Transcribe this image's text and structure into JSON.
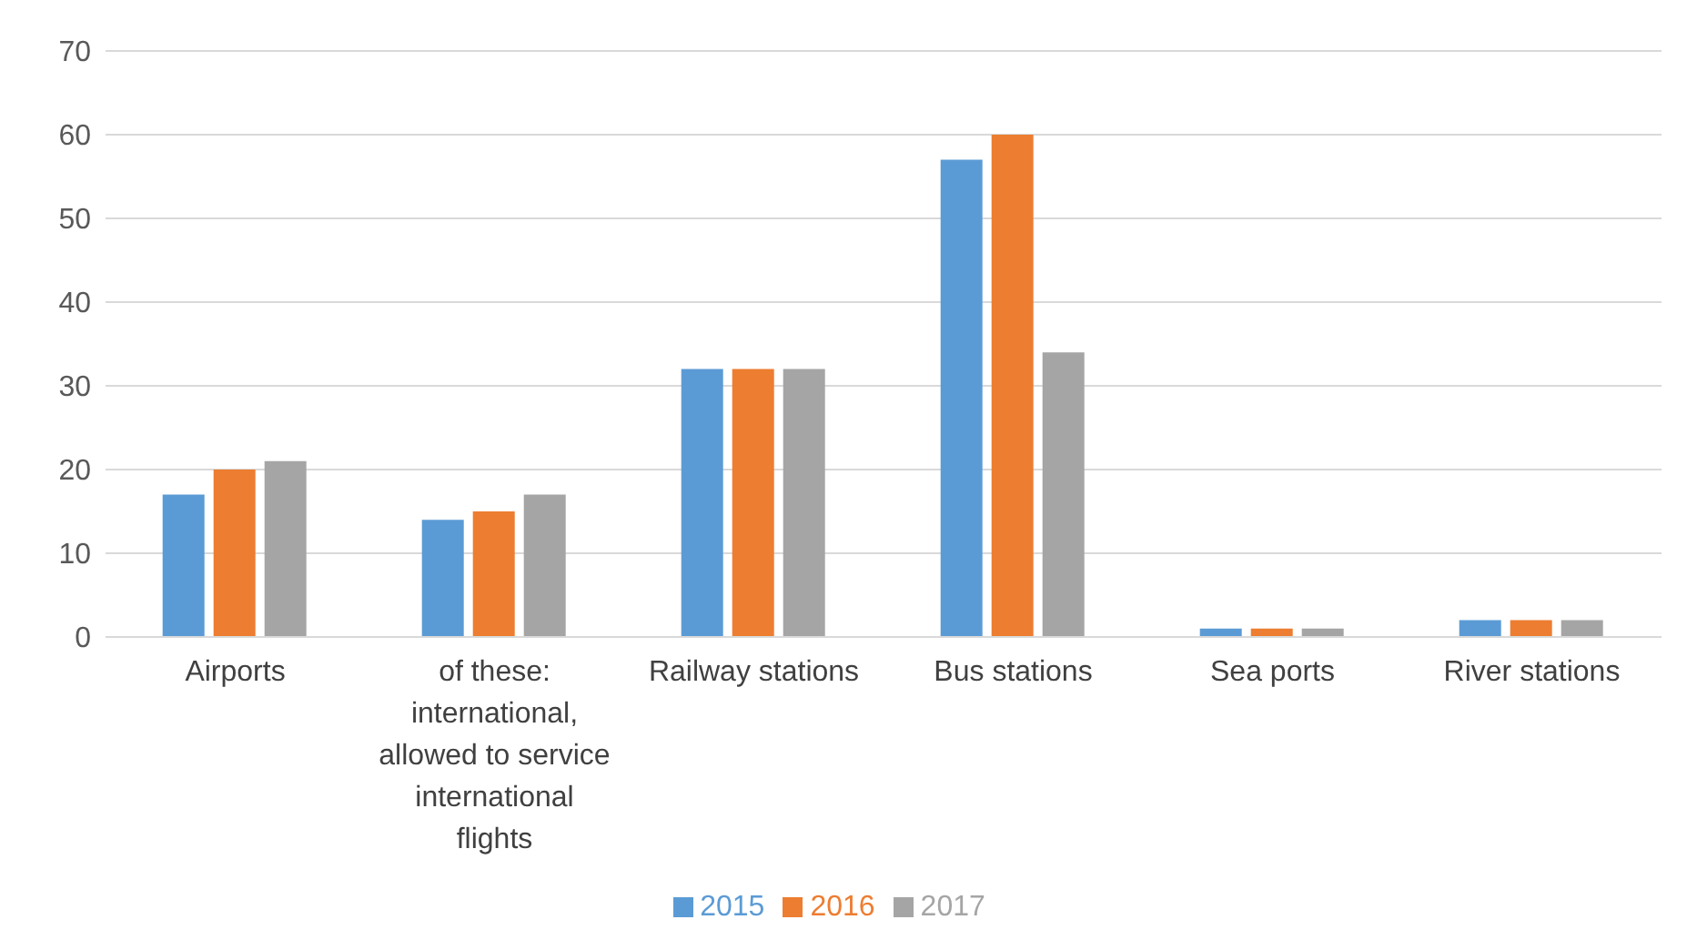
{
  "chart_data": {
    "type": "bar",
    "categories": [
      "Airports",
      "of these: international, allowed to service international flights",
      "Railway stations",
      "Bus stations",
      "Sea ports",
      "River stations"
    ],
    "series": [
      {
        "name": "2015",
        "color": "#5b9bd5",
        "values": [
          17,
          14,
          32,
          57,
          1,
          2
        ]
      },
      {
        "name": "2016",
        "color": "#ed7d31",
        "values": [
          20,
          15,
          32,
          60,
          1,
          2
        ]
      },
      {
        "name": "2017",
        "color": "#a5a5a5",
        "values": [
          21,
          17,
          32,
          34,
          1,
          2
        ]
      }
    ],
    "ylim": [
      0,
      70
    ],
    "yticks": [
      0,
      10,
      20,
      30,
      40,
      50,
      60,
      70
    ],
    "grid": "y",
    "legend": "bottom"
  }
}
